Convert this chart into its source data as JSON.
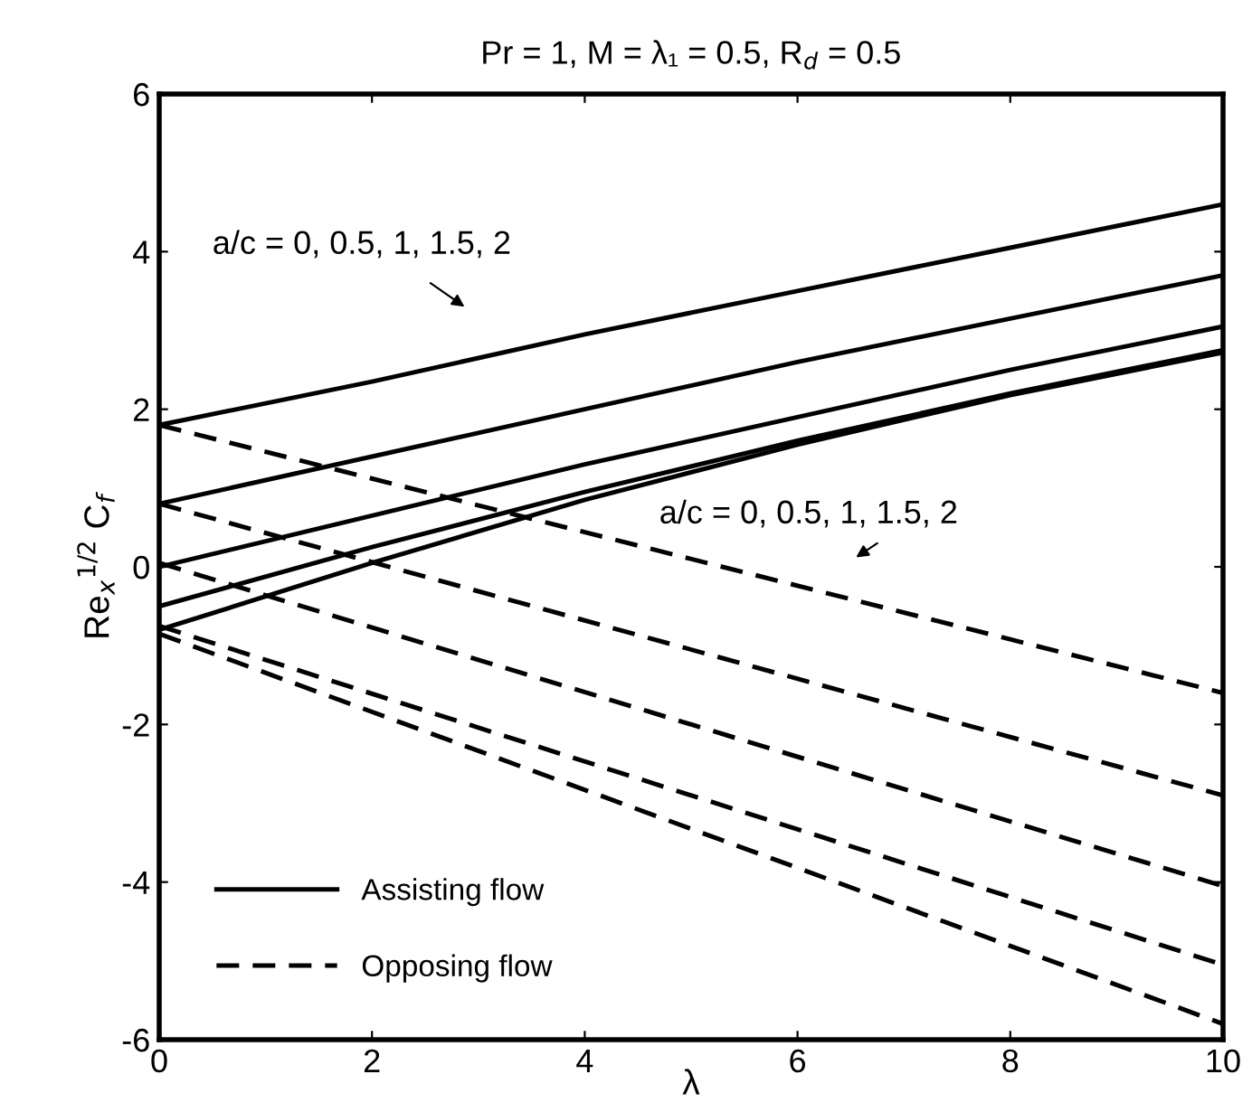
{
  "chart_data": {
    "type": "line",
    "title": "Pr = 1, M = λ₁ = 0.5, R$_{d}$ = 0.5",
    "xlabel": "λ",
    "ylabel": "Re$_{x}$$^{1/2}$ C$_{f}$",
    "xlim": [
      0,
      10
    ],
    "ylim": [
      -6,
      6
    ],
    "xticks": [
      0,
      2,
      4,
      6,
      8,
      10
    ],
    "yticks": [
      -6,
      -4,
      -2,
      0,
      2,
      4,
      6
    ],
    "grid": false,
    "legend": "bottom left",
    "marker": "none",
    "series": [
      {
        "name": "Assisting flow",
        "color": "#000000",
        "line_style": "solid",
        "x": [
          0,
          2,
          4,
          6,
          8,
          10
        ],
        "values": [
          1.8,
          2.35,
          2.95,
          3.5,
          4.05,
          4.6
        ]
      },
      {
        "color": "#000000",
        "line_style": "solid",
        "x": [
          0,
          2,
          4,
          6,
          8,
          10
        ],
        "values": [
          0.8,
          1.4,
          2.0,
          2.6,
          3.15,
          3.7
        ]
      },
      {
        "color": "#000000",
        "line_style": "solid",
        "x": [
          0,
          2,
          4,
          6,
          8,
          10
        ],
        "values": [
          0,
          0.65,
          1.3,
          1.9,
          2.5,
          3.05
        ]
      },
      {
        "color": "#000000",
        "line_style": "solid",
        "x": [
          0,
          2,
          4,
          6,
          8,
          10
        ],
        "values": [
          -0.5,
          0.25,
          0.95,
          1.6,
          2.2,
          2.75
        ]
      },
      {
        "color": "#000000",
        "line_style": "solid",
        "x": [
          0,
          2,
          4,
          6,
          8,
          10
        ],
        "values": [
          -0.8,
          0.05,
          0.85,
          1.55,
          2.18,
          2.72
        ]
      },
      {
        "name": "Opposing flow",
        "color": "#000000",
        "line_style": "dashed",
        "x": [
          0,
          10
        ],
        "values": [
          1.8,
          -1.6
        ]
      },
      {
        "color": "#000000",
        "line_style": "dashed",
        "x": [
          0,
          10
        ],
        "values": [
          0.8,
          -2.9
        ]
      },
      {
        "color": "#000000",
        "line_style": "dashed",
        "x": [
          0,
          10
        ],
        "values": [
          0.05,
          -4.05
        ]
      },
      {
        "color": "#000000",
        "line_style": "dashed",
        "x": [
          0,
          10
        ],
        "values": [
          -0.75,
          -5.05
        ]
      },
      {
        "color": "#000000",
        "line_style": "dashed",
        "x": [
          0,
          10
        ],
        "values": [
          -0.85,
          -5.8
        ]
      }
    ],
    "annotations": [
      "a/c = 0, 0.5, 1, 1.5, 2",
      "a/c = 0, 0.5, 1, 1.5, 2"
    ]
  }
}
